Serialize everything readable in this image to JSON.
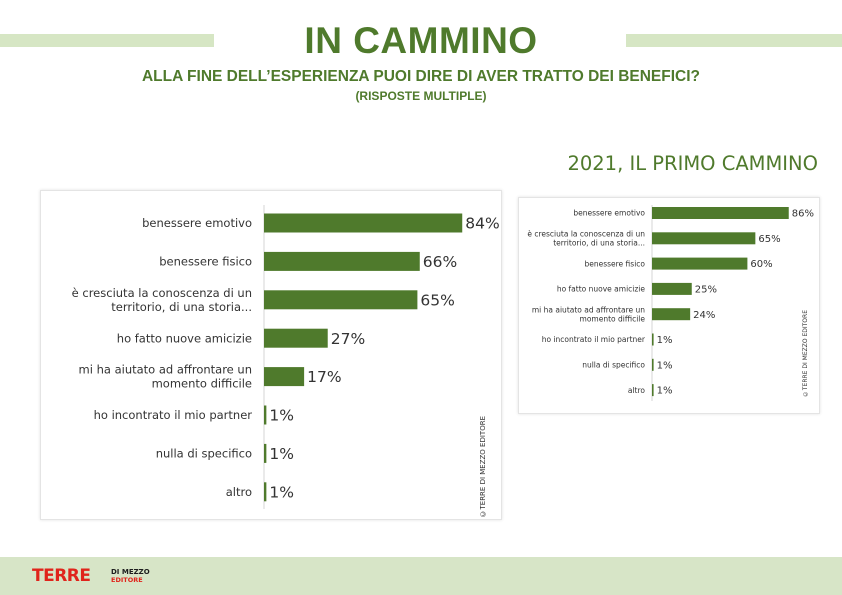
{
  "header": {
    "title": "IN CAMMINO",
    "subtitle": "ALLA FINE DELL’ESPERIENZA PUOI DIRE DI AVER TRATTO DEI BENEFICI?",
    "note": "(RISPOSTE MULTIPLE)"
  },
  "colors": {
    "accent": "#4f7a2c",
    "bar": "#4f7a2c",
    "band": "#d6e6c4",
    "logo_red": "#e0241b"
  },
  "chart_data": [
    {
      "type": "bar",
      "orientation": "horizontal",
      "title": "",
      "categories": [
        [
          "benessere emotivo"
        ],
        [
          "benessere fisico"
        ],
        [
          "è cresciuta la conoscenza di un",
          "territorio, di una storia..."
        ],
        [
          "ho fatto nuove amicizie"
        ],
        [
          "mi ha aiutato ad affrontare un",
          "momento difficile"
        ],
        [
          "ho incontrato il mio partner"
        ],
        [
          "nulla di specifico"
        ],
        [
          "altro"
        ]
      ],
      "values": [
        84,
        66,
        65,
        27,
        17,
        1,
        1,
        1
      ],
      "value_labels": [
        "84%",
        "66%",
        "65%",
        "27%",
        "17%",
        "1%",
        "1%",
        "1%"
      ],
      "xlim": [
        0,
        100
      ],
      "credit": "©TERRE DI MEZZO EDITORE"
    },
    {
      "type": "bar",
      "orientation": "horizontal",
      "title": "2021, IL PRIMO CAMMINO",
      "categories": [
        [
          "benessere emotivo"
        ],
        [
          "è cresciuta la conoscenza di un",
          "territorio, di una storia..."
        ],
        [
          "benessere fisico"
        ],
        [
          "ho fatto nuove amicizie"
        ],
        [
          "mi ha aiutato ad affrontare un",
          "momento difficile"
        ],
        [
          "ho incontrato il mio partner"
        ],
        [
          "nulla di specifico"
        ],
        [
          "altro"
        ]
      ],
      "values": [
        86,
        65,
        60,
        25,
        24,
        1,
        1,
        1
      ],
      "value_labels": [
        "86%",
        "65%",
        "60%",
        "25%",
        "24%",
        "1%",
        "1%",
        "1%"
      ],
      "xlim": [
        0,
        100
      ],
      "credit": "©TERRE DI MEZZO EDITORE"
    }
  ],
  "footer": {
    "logo_main": "TERRE",
    "logo_side_top": "DI MEZZO",
    "logo_side_bottom": "EDITORE"
  }
}
